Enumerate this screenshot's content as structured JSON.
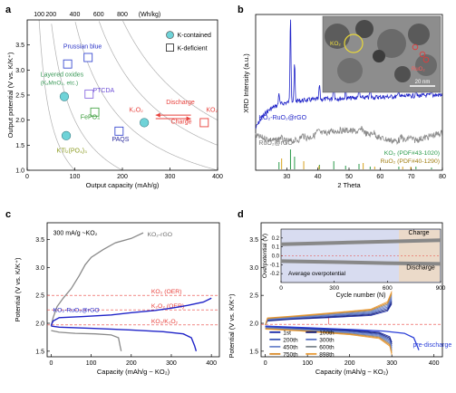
{
  "colors": {
    "axis": "#000000",
    "contour": "#b0b0b0",
    "red": "#e8413c",
    "blue": "#1f23c8",
    "gray": "#8a8a8a",
    "green": "#3a9b3a",
    "cyan": "#6fd3d8",
    "purple": "#6a4bd6",
    "blue_label": "#2a33c6",
    "teal_label": "#3d9b5a",
    "dark_navy": "#1a2a6c",
    "inset_bg": "#d8dcf0",
    "inset_band": "#888888"
  },
  "chart_data": [
    {
      "id": "a",
      "panel_label": "a",
      "type": "scatter",
      "top_axis": {
        "ticks": [
          "100",
          "200",
          "400",
          "600",
          "800",
          "(Wh/kg)"
        ]
      },
      "xlabel": "Output capacity (mAh/g)",
      "ylabel": "Output potential (V vs. K/K⁺)",
      "xlim": [
        0,
        400
      ],
      "ylim": [
        1.0,
        4.0
      ],
      "xticks": [
        0,
        100,
        200,
        300,
        400
      ],
      "yticks": [
        1.0,
        1.5,
        2.0,
        2.5,
        3.0,
        3.5
      ],
      "legend": [
        {
          "label": "K-contained",
          "marker": "circle"
        },
        {
          "label": "K-deficient",
          "marker": "square"
        }
      ],
      "points": [
        {
          "label": "Prussian blue",
          "x": 85,
          "y": 3.12,
          "marker": "square",
          "color": "blue"
        },
        {
          "label": "Prussian blue",
          "x": 128,
          "y": 3.25,
          "marker": "square",
          "color": "blue"
        },
        {
          "label": "Layered oxides (KₓMnO₂, etc.)",
          "x": 78,
          "y": 2.47,
          "marker": "circle",
          "color": "cyan"
        },
        {
          "label": "PTCDA",
          "x": 130,
          "y": 2.52,
          "marker": "square",
          "color": "purple"
        },
        {
          "label": "FePO₄",
          "x": 142,
          "y": 2.16,
          "marker": "square",
          "color": "green"
        },
        {
          "label": "KTi₂(PO₄)₃",
          "x": 82,
          "y": 1.69,
          "marker": "circle",
          "color": "cyan"
        },
        {
          "label": "PAQS",
          "x": 193,
          "y": 1.78,
          "marker": "square",
          "color": "blue"
        },
        {
          "label": "K₂O₂",
          "x": 246,
          "y": 1.95,
          "marker": "circle",
          "color": "cyan"
        },
        {
          "label": "KO₂",
          "x": 372,
          "y": 1.95,
          "marker": "square",
          "color": "red"
        }
      ],
      "annotations": {
        "prussian": "Prussian blue",
        "layered": "Layered oxides",
        "layered_sub": "(KₓMnO₂, etc.)",
        "ptcda": "PTCDA",
        "fepo4": "FePO₄",
        "kti": "KTi₂(PO₄)₃",
        "paqs": "PAQS",
        "k2o2": "K₂O₂",
        "ko2": "KO₂",
        "discharge": "Discharge",
        "charge": "Charge"
      }
    },
    {
      "id": "b",
      "panel_label": "b",
      "type": "line",
      "xlabel": "2 Theta",
      "ylabel": "XRD Intensity (a.u.)",
      "xlim": [
        20,
        80
      ],
      "xticks": [
        30,
        40,
        50,
        60,
        70,
        80
      ],
      "series": [
        {
          "name": "KO₂-RuO₂@rGO",
          "color": "blue"
        },
        {
          "name": "RuO₂@rGO",
          "color": "gray"
        }
      ],
      "reference_labels": [
        "KO₂ (PDF#43-1020)",
        "RuO₂ (PDF#40-1290)"
      ],
      "ko2_peaks": [
        27.5,
        31.2,
        32.5,
        40.5,
        45.1,
        48.9,
        53.2,
        56.8,
        66.0,
        71.5,
        76.5
      ],
      "ruo2_peaks": [
        28.0,
        35.1,
        40.0,
        54.2,
        57.9,
        66.9,
        69.5
      ],
      "inset": {
        "ko2_label": "KO₂",
        "ruo2_label": "RuO₂",
        "scale_bar": "20 nm"
      }
    },
    {
      "id": "c",
      "panel_label": "c",
      "type": "line",
      "xlabel": "Capacity (mAh/g ~ KO₂)",
      "ylabel": "Potential (V vs. K/K⁺)",
      "xlim": [
        -10,
        420
      ],
      "ylim": [
        1.4,
        3.8
      ],
      "xticks": [
        0,
        100,
        200,
        300,
        400
      ],
      "yticks": [
        1.5,
        2.0,
        2.5,
        3.0,
        3.5
      ],
      "note": "300 mA/g ~KO₂",
      "series": [
        {
          "name": "KO₂-rGO",
          "color": "gray"
        },
        {
          "name": "KO₂-RuO₂@rGO",
          "color": "blue"
        }
      ],
      "reference_lines": [
        {
          "label": "KO₂ (OER)",
          "y": 2.5
        },
        {
          "label": "K₂O₂ (OER)",
          "y": 2.24
        },
        {
          "label": "KO₂/K₂O₂",
          "y": 1.97
        }
      ]
    },
    {
      "id": "d",
      "panel_label": "d",
      "type": "line",
      "xlabel": "Capacity (mAh/g ~ KO₂)",
      "ylabel": "Potential (V vs. K/K⁺)",
      "xlim": [
        -10,
        420
      ],
      "ylim": [
        1.4,
        3.8
      ],
      "xticks": [
        0,
        100,
        200,
        300,
        400
      ],
      "yticks": [
        1.5,
        2.0,
        2.5,
        3.0,
        3.5
      ],
      "legend": [
        {
          "label": "1st",
          "color": "#1a2aa8"
        },
        {
          "label": "100th",
          "color": "#12186e"
        },
        {
          "label": "200th",
          "color": "#3c57b8"
        },
        {
          "label": "300th",
          "color": "#5a73c4"
        },
        {
          "label": "450th",
          "color": "#6f87cc"
        },
        {
          "label": "600th",
          "color": "#7f8890"
        },
        {
          "label": "750th",
          "color": "#d98b2b"
        },
        {
          "label": "898th",
          "color": "#e89a36"
        }
      ],
      "pre_discharge_label": "pre-discharge",
      "inset": {
        "xlabel": "Cycle number (N)",
        "ylabel": "Overpotential (V)",
        "xlim": [
          0,
          900
        ],
        "ylim": [
          -0.3,
          0.3
        ],
        "xticks": [
          0,
          300,
          600,
          900
        ],
        "yticks": [
          -0.2,
          -0.1,
          0.0,
          0.1,
          0.2
        ],
        "charge_label": "Charge",
        "discharge_label": "Discharge",
        "avg_label": "Average overpotential",
        "charge_value": 0.155,
        "discharge_value": -0.075
      }
    }
  ]
}
